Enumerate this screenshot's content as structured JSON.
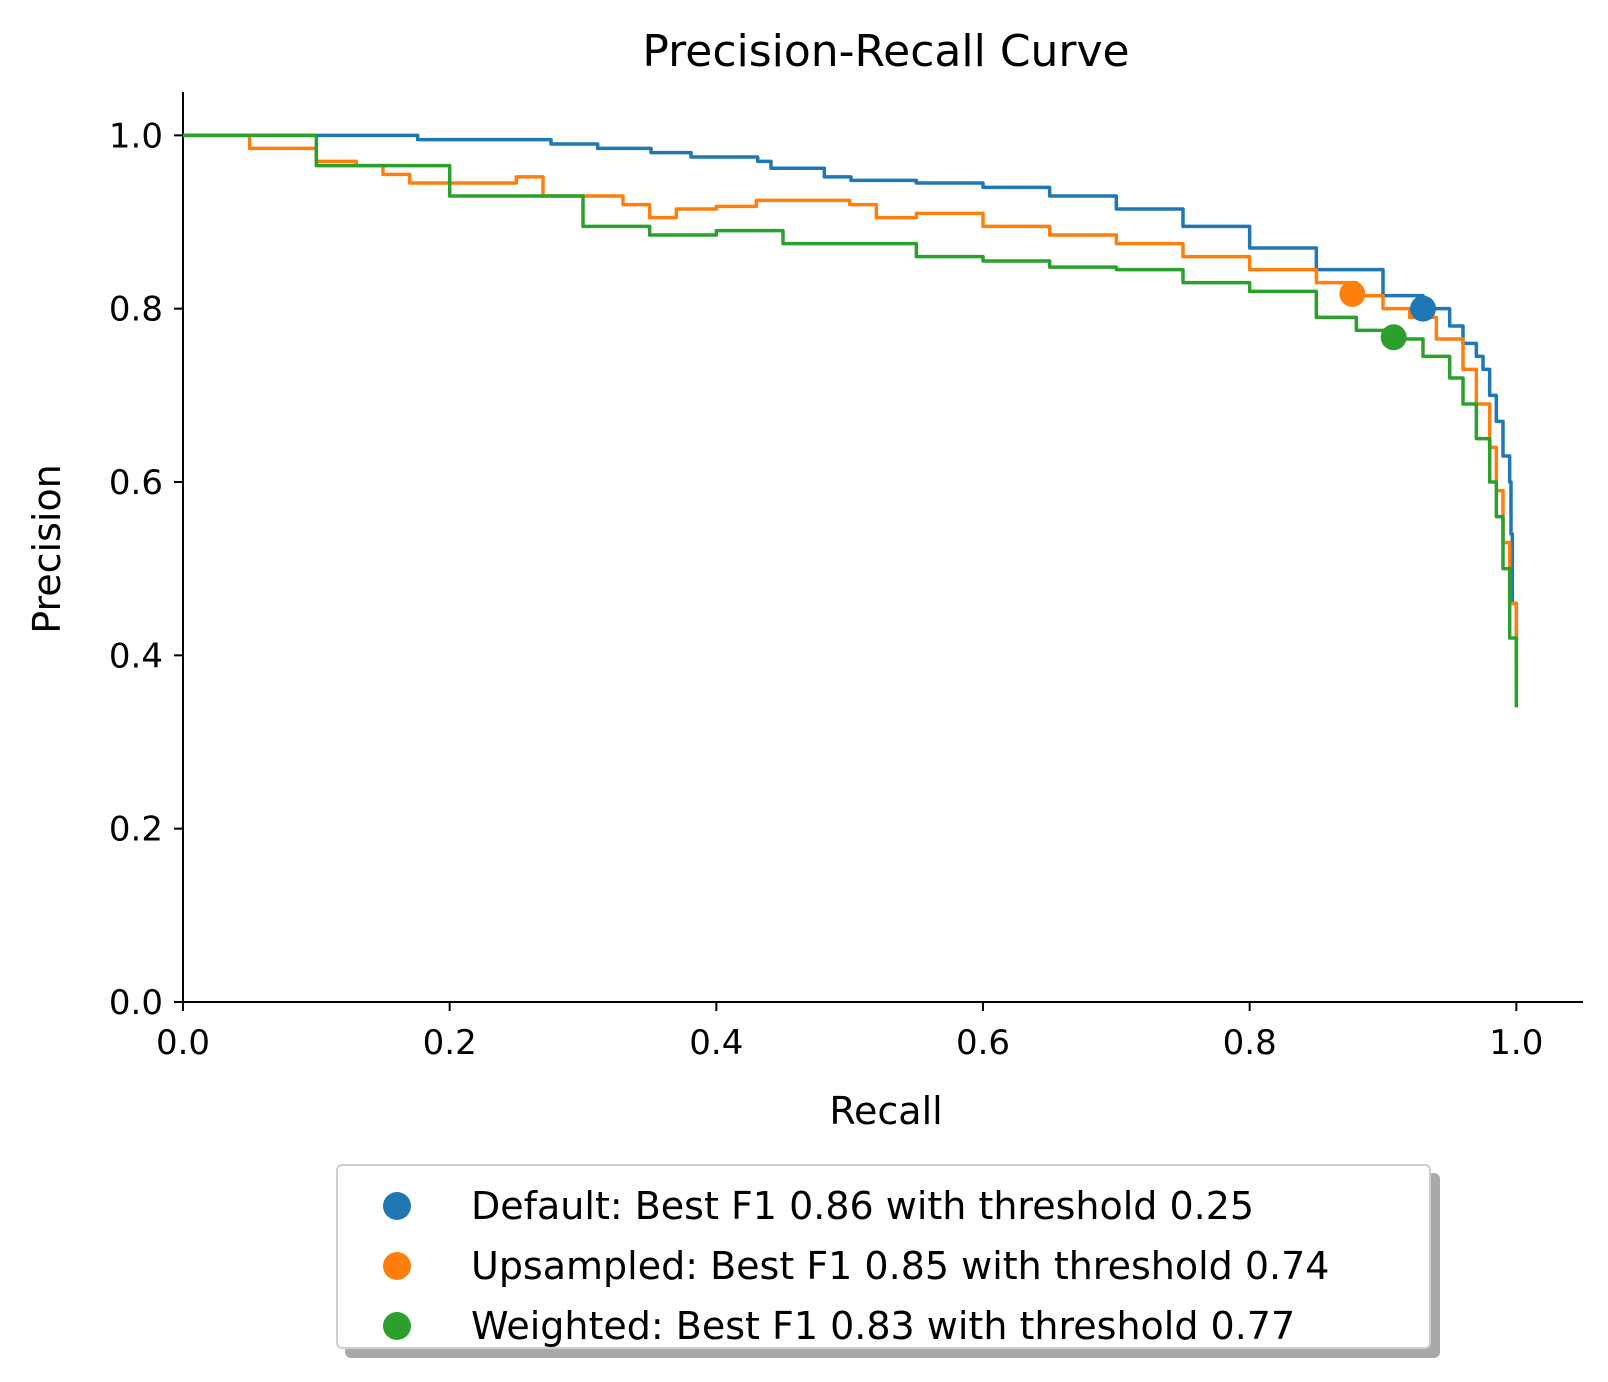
{
  "chart_data": {
    "type": "line",
    "title": "Precision-Recall Curve",
    "xlabel": "Recall",
    "ylabel": "Precision",
    "xlim": [
      0.0,
      1.05
    ],
    "ylim": [
      0.0,
      1.05
    ],
    "xticks": [
      "0.0",
      "0.2",
      "0.4",
      "0.6",
      "0.8",
      "1.0"
    ],
    "yticks": [
      "0.0",
      "0.2",
      "0.4",
      "0.6",
      "0.8",
      "1.0"
    ],
    "grid": false,
    "legend_position": "below",
    "series": [
      {
        "name": "Default: Best F1 0.86 with threshold 0.25",
        "color": "#1f77b4",
        "best_point": {
          "x": 0.93,
          "y": 0.8
        },
        "x": [
          0.0,
          0.175,
          0.176,
          0.275,
          0.276,
          0.31,
          0.311,
          0.35,
          0.351,
          0.38,
          0.381,
          0.43,
          0.431,
          0.44,
          0.441,
          0.48,
          0.481,
          0.5,
          0.501,
          0.54,
          0.55,
          0.6,
          0.65,
          0.7,
          0.75,
          0.8,
          0.85,
          0.9,
          0.93,
          0.95,
          0.96,
          0.97,
          0.975,
          0.98,
          0.985,
          0.99,
          0.995,
          0.996,
          0.997,
          1.0
        ],
        "y": [
          1.0,
          1.0,
          0.995,
          0.995,
          0.99,
          0.99,
          0.985,
          0.985,
          0.98,
          0.98,
          0.975,
          0.975,
          0.97,
          0.97,
          0.962,
          0.962,
          0.952,
          0.952,
          0.948,
          0.948,
          0.945,
          0.94,
          0.93,
          0.915,
          0.895,
          0.87,
          0.845,
          0.815,
          0.8,
          0.78,
          0.76,
          0.745,
          0.73,
          0.7,
          0.67,
          0.63,
          0.6,
          0.54,
          0.46,
          0.39
        ]
      },
      {
        "name": "Upsampled: Best F1 0.85 with threshold 0.74",
        "color": "#ff7f0e",
        "best_point": {
          "x": 0.877,
          "y": 0.817
        },
        "x": [
          0.0,
          0.05,
          0.1,
          0.13,
          0.15,
          0.17,
          0.2,
          0.25,
          0.27,
          0.3,
          0.33,
          0.35,
          0.37,
          0.4,
          0.43,
          0.45,
          0.5,
          0.52,
          0.55,
          0.6,
          0.65,
          0.7,
          0.75,
          0.8,
          0.85,
          0.88,
          0.9,
          0.92,
          0.94,
          0.96,
          0.97,
          0.98,
          0.985,
          0.99,
          0.995,
          1.0
        ],
        "y": [
          1.0,
          0.985,
          0.97,
          0.965,
          0.955,
          0.945,
          0.945,
          0.952,
          0.93,
          0.93,
          0.92,
          0.905,
          0.915,
          0.918,
          0.925,
          0.925,
          0.92,
          0.905,
          0.91,
          0.895,
          0.885,
          0.875,
          0.86,
          0.845,
          0.83,
          0.815,
          0.8,
          0.79,
          0.765,
          0.73,
          0.69,
          0.64,
          0.59,
          0.53,
          0.46,
          0.36
        ]
      },
      {
        "name": "Weighted: Best F1 0.83 with threshold 0.77",
        "color": "#2ca02c",
        "best_point": {
          "x": 0.908,
          "y": 0.767
        },
        "x": [
          0.0,
          0.1,
          0.2,
          0.3,
          0.35,
          0.4,
          0.45,
          0.5,
          0.55,
          0.6,
          0.65,
          0.7,
          0.75,
          0.8,
          0.85,
          0.88,
          0.91,
          0.93,
          0.95,
          0.96,
          0.97,
          0.98,
          0.985,
          0.99,
          0.995,
          1.0
        ],
        "y": [
          1.0,
          0.965,
          0.93,
          0.895,
          0.885,
          0.89,
          0.875,
          0.875,
          0.86,
          0.855,
          0.848,
          0.845,
          0.83,
          0.82,
          0.79,
          0.775,
          0.765,
          0.745,
          0.72,
          0.69,
          0.65,
          0.6,
          0.56,
          0.5,
          0.42,
          0.34
        ]
      }
    ]
  }
}
